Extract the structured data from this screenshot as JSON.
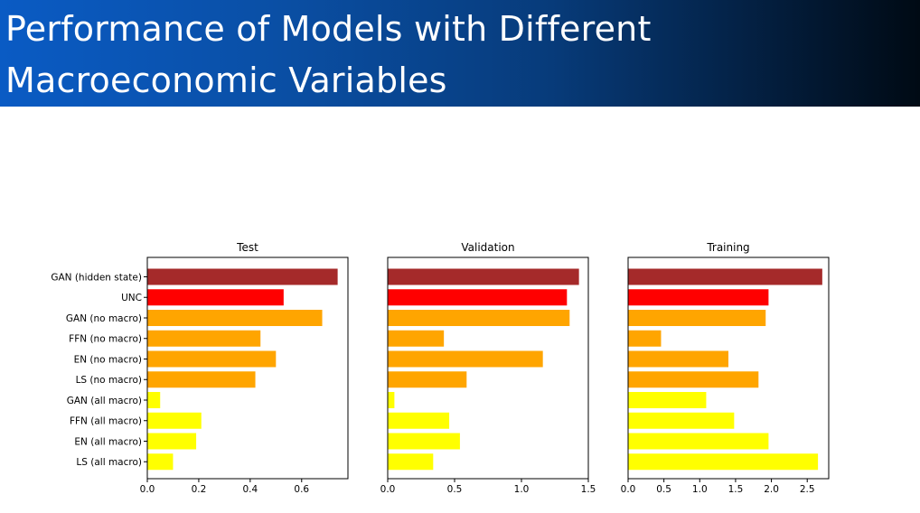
{
  "slide": {
    "title": "Performance of Models with Different Macroeconomic Variables"
  },
  "colors": {
    "header_start": "#0a5bc4",
    "header_end": "#000a14",
    "GAN (hidden state)": "#a52a2a",
    "UNC": "#ff0000",
    "no macro": "#ffa500",
    "all macro": "#ffff00"
  },
  "chart_data": [
    {
      "type": "bar",
      "orientation": "horizontal",
      "title": "Test",
      "categories": [
        "GAN (hidden state)",
        "UNC",
        "GAN (no macro)",
        "FFN (no macro)",
        "EN (no macro)",
        "LS (no macro)",
        "GAN (all macro)",
        "FFN (all macro)",
        "EN (all macro)",
        "LS (all macro)"
      ],
      "values": [
        0.74,
        0.53,
        0.68,
        0.44,
        0.5,
        0.42,
        0.05,
        0.21,
        0.19,
        0.1
      ],
      "bar_colors": [
        "#a52a2a",
        "#ff0000",
        "#ffa500",
        "#ffa500",
        "#ffa500",
        "#ffa500",
        "#ffff00",
        "#ffff00",
        "#ffff00",
        "#ffff00"
      ],
      "xlim": [
        0,
        0.78
      ],
      "xticks": [
        0.0,
        0.2,
        0.4,
        0.6
      ],
      "xtick_labels": [
        "0.0",
        "0.2",
        "0.4",
        "0.6"
      ],
      "xlabel": "",
      "ylabel": "",
      "grid": false
    },
    {
      "type": "bar",
      "orientation": "horizontal",
      "title": "Validation",
      "categories": [
        "GAN (hidden state)",
        "UNC",
        "GAN (no macro)",
        "FFN (no macro)",
        "EN (no macro)",
        "LS (no macro)",
        "GAN (all macro)",
        "FFN (all macro)",
        "EN (all macro)",
        "LS (all macro)"
      ],
      "values": [
        1.43,
        1.34,
        1.36,
        0.42,
        1.16,
        0.59,
        0.05,
        0.46,
        0.54,
        0.34
      ],
      "bar_colors": [
        "#a52a2a",
        "#ff0000",
        "#ffa500",
        "#ffa500",
        "#ffa500",
        "#ffa500",
        "#ffff00",
        "#ffff00",
        "#ffff00",
        "#ffff00"
      ],
      "xlim": [
        0,
        1.5
      ],
      "xticks": [
        0.0,
        0.5,
        1.0,
        1.5
      ],
      "xtick_labels": [
        "0.0",
        "0.5",
        "1.0",
        "1.5"
      ],
      "xlabel": "",
      "ylabel": "",
      "grid": false
    },
    {
      "type": "bar",
      "orientation": "horizontal",
      "title": "Training",
      "categories": [
        "GAN (hidden state)",
        "UNC",
        "GAN (no macro)",
        "FFN (no macro)",
        "EN (no macro)",
        "LS (no macro)",
        "GAN (all macro)",
        "FFN (all macro)",
        "EN (all macro)",
        "LS (all macro)"
      ],
      "values": [
        2.71,
        1.96,
        1.92,
        0.46,
        1.4,
        1.82,
        1.09,
        1.48,
        1.96,
        2.65
      ],
      "bar_colors": [
        "#a52a2a",
        "#ff0000",
        "#ffa500",
        "#ffa500",
        "#ffa500",
        "#ffa500",
        "#ffff00",
        "#ffff00",
        "#ffff00",
        "#ffff00"
      ],
      "xlim": [
        0,
        2.8
      ],
      "xticks": [
        0.0,
        0.5,
        1.0,
        1.5,
        2.0,
        2.5
      ],
      "xtick_labels": [
        "0.0",
        "0.5",
        "1.0",
        "1.5",
        "2.0",
        "2.5"
      ],
      "xlabel": "",
      "ylabel": "",
      "grid": false
    }
  ]
}
